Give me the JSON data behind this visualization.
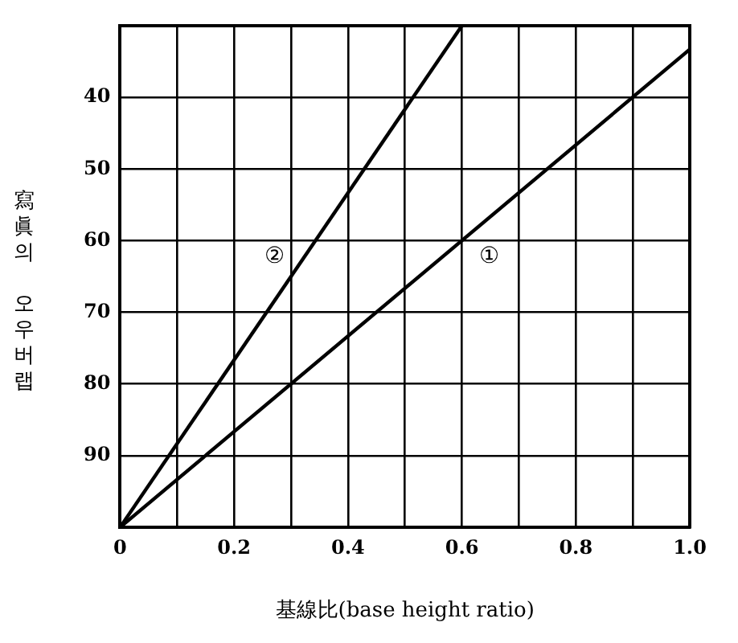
{
  "chart_data": {
    "type": "line",
    "xlabel": "基線比(base height ratio)",
    "ylabel": "寫眞의 오우버랩",
    "xlim": [
      0,
      1.0
    ],
    "xticks": [
      {
        "value": 0,
        "label": "0"
      },
      {
        "value": 0.1,
        "label": null
      },
      {
        "value": 0.2,
        "label": "0.2"
      },
      {
        "value": 0.3,
        "label": null
      },
      {
        "value": 0.4,
        "label": "0.4"
      },
      {
        "value": 0.5,
        "label": null
      },
      {
        "value": 0.6,
        "label": "0.6"
      },
      {
        "value": 0.7,
        "label": null
      },
      {
        "value": 0.8,
        "label": "0.8"
      },
      {
        "value": 0.9,
        "label": null
      },
      {
        "value": 1.0,
        "label": "1.0"
      }
    ],
    "ylim": [
      100,
      30
    ],
    "yticks": [
      {
        "value": 100,
        "label": null
      },
      90,
      80,
      70,
      60,
      50,
      40
    ],
    "grid": true,
    "legend": false,
    "marker": "none",
    "line_style": "solid",
    "series": [
      {
        "name": "①",
        "color": "#000000",
        "x": [
          0,
          1.0
        ],
        "values": [
          100,
          33.3
        ]
      },
      {
        "name": "②",
        "color": "#000000",
        "x": [
          0,
          0.6
        ],
        "values": [
          100,
          30
        ]
      }
    ]
  }
}
